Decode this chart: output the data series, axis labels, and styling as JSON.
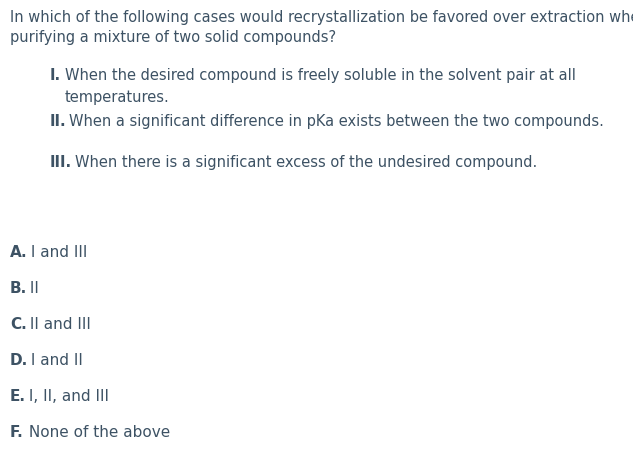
{
  "background_color": "#ffffff",
  "text_color": "#3d5264",
  "question_line1": "In which of the following cases would recrystallization be favored over extraction when",
  "question_line2": "purifying a mixture of two solid compounds?",
  "statements": [
    {
      "label": "I.",
      "text": "When the desired compound is freely soluble in the solvent pair at all\ntemperatures."
    },
    {
      "label": "II.",
      "text": "When a significant difference in pKa exists between the two compounds."
    },
    {
      "label": "III.",
      "text": "When there is a significant excess of the undesired compound."
    }
  ],
  "options": [
    {
      "label": "A.",
      "text": " I and III"
    },
    {
      "label": "B.",
      "text": " II"
    },
    {
      "label": "C.",
      "text": " II and III"
    },
    {
      "label": "D.",
      "text": " I and II"
    },
    {
      "label": "E.",
      "text": " I, II, and III"
    },
    {
      "label": "F.",
      "text": " None of the above"
    }
  ],
  "q_fontsize": 10.5,
  "stmt_fontsize": 10.5,
  "opt_fontsize": 11.0
}
